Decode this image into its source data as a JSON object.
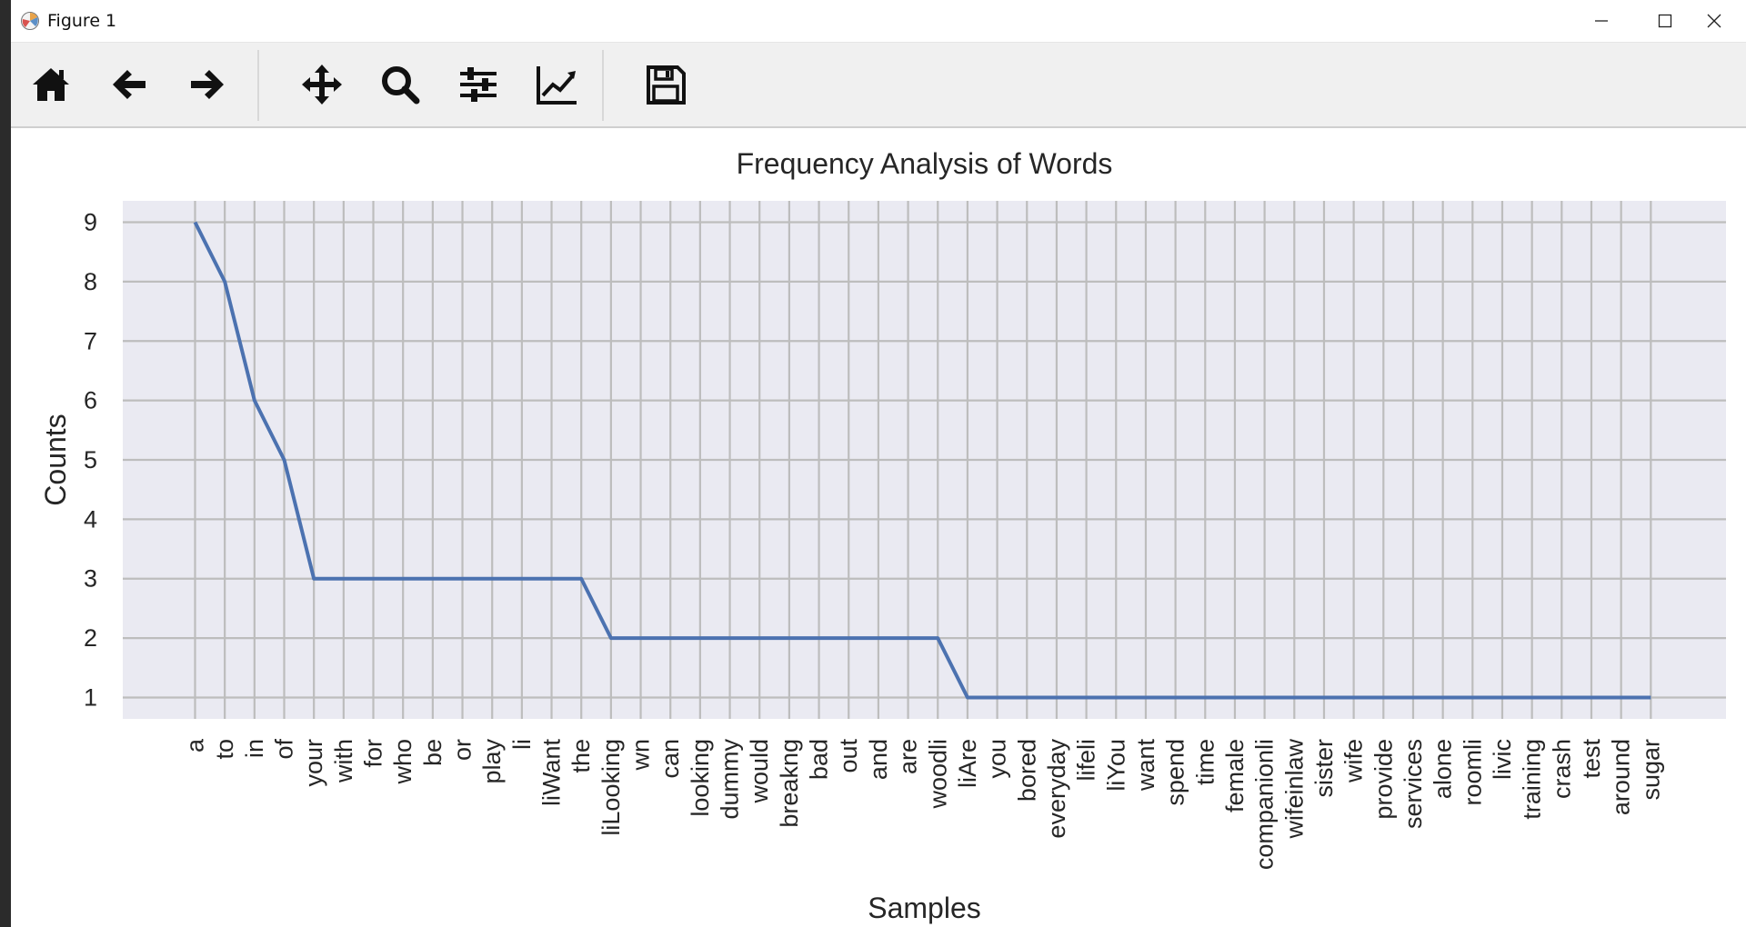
{
  "window": {
    "title": "Figure 1",
    "icons": {
      "app": "matplotlib-logo-icon",
      "minimize": "minimize-icon",
      "maximize": "maximize-icon",
      "close": "close-icon"
    }
  },
  "toolbar": {
    "buttons": [
      {
        "name": "home-button",
        "icon": "home-icon"
      },
      {
        "name": "back-button",
        "icon": "arrow-left-icon"
      },
      {
        "name": "forward-button",
        "icon": "arrow-right-icon"
      },
      {
        "name": "pan-button",
        "icon": "move-icon"
      },
      {
        "name": "zoom-button",
        "icon": "magnifier-icon"
      },
      {
        "name": "subplots-button",
        "icon": "sliders-icon"
      },
      {
        "name": "axes-edit-button",
        "icon": "line-chart-icon"
      },
      {
        "name": "save-button",
        "icon": "floppy-disk-icon"
      }
    ]
  },
  "chart_data": {
    "type": "line",
    "title": "Frequency Analysis of Words",
    "xlabel": "Samples",
    "ylabel": "Counts",
    "categories": [
      "a",
      "to",
      "in",
      "of",
      "your",
      "with",
      "for",
      "who",
      "be",
      "or",
      "play",
      "li",
      "liWant",
      "the",
      "liLooking",
      "wn",
      "can",
      "looking",
      "dummy",
      "would",
      "breakng",
      "bad",
      "out",
      "and",
      "are",
      "woodli",
      "liAre",
      "you",
      "bored",
      "everyday",
      "lifeli",
      "liYou",
      "want",
      "spend",
      "time",
      "female",
      "companionli",
      "wifeinlaw",
      "sister",
      "wife",
      "provide",
      "services",
      "alone",
      "roomli",
      "livic",
      "training",
      "crash",
      "test",
      "around",
      "sugar"
    ],
    "series": [
      {
        "values": [
          9,
          8,
          6,
          5,
          3,
          3,
          3,
          3,
          3,
          3,
          3,
          3,
          3,
          3,
          2,
          2,
          2,
          2,
          2,
          2,
          2,
          2,
          2,
          2,
          2,
          2,
          1,
          1,
          1,
          1,
          1,
          1,
          1,
          1,
          1,
          1,
          1,
          1,
          1,
          1,
          1,
          1,
          1,
          1,
          1,
          1,
          1,
          1,
          1,
          1
        ]
      }
    ],
    "yticks": [
      1,
      2,
      3,
      4,
      5,
      6,
      7,
      8,
      9
    ],
    "ylim": [
      0.64,
      9.36
    ],
    "grid": true,
    "style": "seaborn",
    "colors": {
      "background": "#eaeaf2",
      "grid": "#bdbdbd",
      "line": "#4c72b0",
      "text": "#262626"
    }
  }
}
